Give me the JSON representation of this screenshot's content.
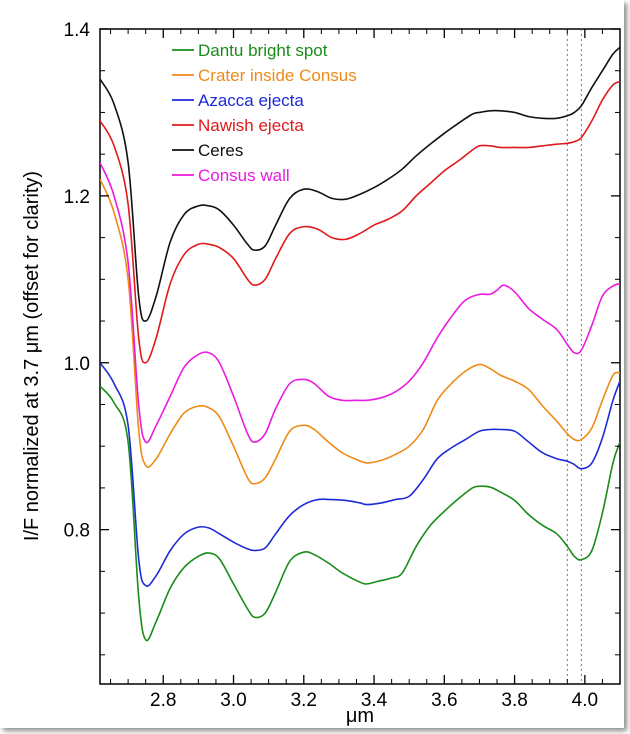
{
  "chart_data": {
    "type": "line",
    "title": "",
    "xlabel": "μm",
    "ylabel": "I/F normalized at 3.7 μm (offset for clarity)",
    "xlim": [
      2.62,
      4.1
    ],
    "ylim": [
      0.615,
      1.4
    ],
    "xticks": [
      "2.8",
      "3.0",
      "3.2",
      "3.4",
      "3.6",
      "3.8",
      "4.0"
    ],
    "yticks": [
      "0.8",
      "1.0",
      "1.2",
      "1.4"
    ],
    "grid": false,
    "legend_position": "top-left",
    "reference_lines_x": [
      3.95,
      3.99
    ],
    "series": [
      {
        "name": "Dantu bright spot",
        "color": "#1a8c1a",
        "x": [
          2.62,
          2.66,
          2.7,
          2.73,
          2.75,
          2.78,
          2.82,
          2.86,
          2.9,
          2.93,
          2.96,
          3.0,
          3.04,
          3.06,
          3.09,
          3.12,
          3.16,
          3.2,
          3.23,
          3.27,
          3.31,
          3.36,
          3.38,
          3.41,
          3.45,
          3.48,
          3.52,
          3.56,
          3.6,
          3.64,
          3.68,
          3.7,
          3.73,
          3.76,
          3.8,
          3.84,
          3.88,
          3.92,
          3.95,
          3.97,
          3.99,
          4.02,
          4.05,
          4.08,
          4.1
        ],
        "y": [
          0.972,
          0.952,
          0.905,
          0.72,
          0.668,
          0.69,
          0.73,
          0.755,
          0.768,
          0.772,
          0.765,
          0.735,
          0.705,
          0.695,
          0.7,
          0.725,
          0.762,
          0.773,
          0.77,
          0.76,
          0.748,
          0.737,
          0.735,
          0.738,
          0.742,
          0.748,
          0.78,
          0.805,
          0.822,
          0.837,
          0.85,
          0.852,
          0.851,
          0.845,
          0.835,
          0.818,
          0.805,
          0.795,
          0.78,
          0.768,
          0.764,
          0.775,
          0.82,
          0.88,
          0.905
        ]
      },
      {
        "name": "Crater inside Consus",
        "color": "#ef8a17",
        "x": [
          2.62,
          2.66,
          2.7,
          2.73,
          2.75,
          2.78,
          2.82,
          2.86,
          2.9,
          2.93,
          2.96,
          3.0,
          3.04,
          3.06,
          3.09,
          3.12,
          3.16,
          3.2,
          3.23,
          3.27,
          3.31,
          3.35,
          3.38,
          3.42,
          3.46,
          3.5,
          3.54,
          3.58,
          3.62,
          3.66,
          3.7,
          3.73,
          3.76,
          3.8,
          3.84,
          3.88,
          3.92,
          3.95,
          3.97,
          3.99,
          4.02,
          4.05,
          4.08,
          4.1
        ],
        "y": [
          1.22,
          1.18,
          1.1,
          0.92,
          0.877,
          0.885,
          0.915,
          0.94,
          0.948,
          0.946,
          0.935,
          0.9,
          0.862,
          0.855,
          0.862,
          0.885,
          0.918,
          0.925,
          0.92,
          0.905,
          0.892,
          0.884,
          0.88,
          0.883,
          0.89,
          0.9,
          0.92,
          0.955,
          0.975,
          0.99,
          0.998,
          0.993,
          0.985,
          0.978,
          0.968,
          0.948,
          0.93,
          0.915,
          0.908,
          0.908,
          0.922,
          0.955,
          0.985,
          0.988
        ]
      },
      {
        "name": "Azacca ejecta",
        "color": "#1d2bd6",
        "x": [
          2.62,
          2.66,
          2.7,
          2.73,
          2.75,
          2.78,
          2.82,
          2.86,
          2.9,
          2.93,
          2.96,
          3.0,
          3.04,
          3.06,
          3.09,
          3.12,
          3.16,
          3.2,
          3.24,
          3.28,
          3.32,
          3.36,
          3.38,
          3.42,
          3.46,
          3.5,
          3.54,
          3.58,
          3.62,
          3.66,
          3.7,
          3.73,
          3.76,
          3.8,
          3.84,
          3.88,
          3.92,
          3.95,
          3.97,
          3.99,
          4.02,
          4.05,
          4.08,
          4.1
        ],
        "y": [
          1.0,
          0.975,
          0.925,
          0.765,
          0.733,
          0.745,
          0.775,
          0.795,
          0.803,
          0.802,
          0.795,
          0.785,
          0.777,
          0.775,
          0.778,
          0.795,
          0.817,
          0.83,
          0.836,
          0.836,
          0.835,
          0.832,
          0.83,
          0.832,
          0.836,
          0.84,
          0.86,
          0.885,
          0.898,
          0.908,
          0.918,
          0.92,
          0.92,
          0.918,
          0.905,
          0.892,
          0.885,
          0.882,
          0.878,
          0.873,
          0.88,
          0.91,
          0.955,
          0.978
        ]
      },
      {
        "name": "Nawish ejecta",
        "color": "#e0191b",
        "x": [
          2.62,
          2.66,
          2.7,
          2.73,
          2.75,
          2.78,
          2.82,
          2.86,
          2.9,
          2.93,
          2.96,
          3.0,
          3.04,
          3.06,
          3.09,
          3.12,
          3.16,
          3.2,
          3.24,
          3.28,
          3.32,
          3.36,
          3.4,
          3.44,
          3.48,
          3.52,
          3.56,
          3.6,
          3.64,
          3.68,
          3.7,
          3.73,
          3.76,
          3.8,
          3.84,
          3.88,
          3.92,
          3.95,
          3.97,
          3.99,
          4.02,
          4.05,
          4.08,
          4.1
        ],
        "y": [
          1.29,
          1.26,
          1.19,
          1.03,
          1.0,
          1.03,
          1.095,
          1.13,
          1.142,
          1.142,
          1.138,
          1.125,
          1.1,
          1.093,
          1.1,
          1.125,
          1.155,
          1.163,
          1.16,
          1.15,
          1.148,
          1.155,
          1.165,
          1.172,
          1.182,
          1.2,
          1.215,
          1.23,
          1.242,
          1.255,
          1.26,
          1.26,
          1.258,
          1.258,
          1.258,
          1.26,
          1.262,
          1.263,
          1.265,
          1.27,
          1.29,
          1.315,
          1.333,
          1.337
        ]
      },
      {
        "name": "Ceres",
        "color": "#111111",
        "x": [
          2.62,
          2.66,
          2.7,
          2.73,
          2.75,
          2.78,
          2.82,
          2.86,
          2.9,
          2.93,
          2.96,
          3.0,
          3.04,
          3.06,
          3.09,
          3.12,
          3.16,
          3.2,
          3.24,
          3.28,
          3.32,
          3.36,
          3.4,
          3.44,
          3.48,
          3.52,
          3.56,
          3.6,
          3.64,
          3.68,
          3.7,
          3.73,
          3.76,
          3.8,
          3.84,
          3.88,
          3.92,
          3.95,
          3.97,
          3.99,
          4.02,
          4.05,
          4.08,
          4.1
        ],
        "y": [
          1.34,
          1.31,
          1.24,
          1.08,
          1.05,
          1.08,
          1.145,
          1.178,
          1.188,
          1.188,
          1.183,
          1.165,
          1.142,
          1.135,
          1.14,
          1.165,
          1.197,
          1.208,
          1.205,
          1.197,
          1.196,
          1.202,
          1.21,
          1.22,
          1.232,
          1.248,
          1.262,
          1.275,
          1.287,
          1.298,
          1.3,
          1.302,
          1.302,
          1.3,
          1.295,
          1.293,
          1.293,
          1.296,
          1.3,
          1.308,
          1.33,
          1.35,
          1.37,
          1.378
        ]
      },
      {
        "name": "Consus wall",
        "color": "#ea1ae0",
        "x": [
          2.62,
          2.66,
          2.7,
          2.73,
          2.75,
          2.78,
          2.82,
          2.86,
          2.9,
          2.93,
          2.96,
          3.0,
          3.04,
          3.06,
          3.09,
          3.12,
          3.16,
          3.2,
          3.23,
          3.27,
          3.31,
          3.35,
          3.38,
          3.42,
          3.46,
          3.5,
          3.54,
          3.58,
          3.62,
          3.66,
          3.7,
          3.73,
          3.75,
          3.77,
          3.8,
          3.84,
          3.88,
          3.92,
          3.95,
          3.97,
          3.99,
          4.02,
          4.05,
          4.08,
          4.1
        ],
        "y": [
          1.24,
          1.2,
          1.12,
          0.95,
          0.905,
          0.925,
          0.96,
          0.995,
          1.01,
          1.012,
          1.0,
          0.96,
          0.915,
          0.905,
          0.915,
          0.945,
          0.975,
          0.98,
          0.975,
          0.96,
          0.955,
          0.955,
          0.955,
          0.958,
          0.965,
          0.978,
          1.0,
          1.03,
          1.055,
          1.075,
          1.082,
          1.082,
          1.087,
          1.093,
          1.085,
          1.065,
          1.052,
          1.04,
          1.022,
          1.012,
          1.015,
          1.045,
          1.08,
          1.092,
          1.095
        ]
      }
    ]
  }
}
